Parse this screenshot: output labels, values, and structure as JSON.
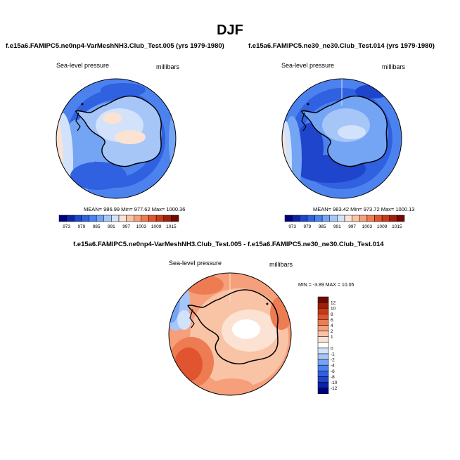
{
  "title": "DJF",
  "panels": [
    {
      "title": "f.e15a6.FAMIPC5.ne0np4-VarMeshNH3.Club_Test.005 (yrs 1979-1980)",
      "variable": "Sea-level pressure",
      "units": "millibars",
      "stats": "MEAN= 986.99   Min= 977.62   Max= 1000.36"
    },
    {
      "title": "f.e15a6.FAMIPC5.ne30_ne30.Club_Test.014 (yrs 1979-1980)",
      "variable": "Sea-level pressure",
      "units": "millibars",
      "stats": "MEAN= 983.42   Min= 973.72   Max= 1000.13"
    },
    {
      "title": "f.e15a6.FAMIPC5.ne0np4-VarMeshNH3.Club_Test.005 - f.e15a6.FAMIPC5.ne30_ne30.Club_Test.014",
      "variable": "Sea-level pressure",
      "units": "millibars",
      "stats": "MIN = -3.89  MAX =  10.05"
    }
  ],
  "colors": {
    "pressure_scale": [
      "#00007f",
      "#0b23a8",
      "#1f45cc",
      "#2f61e0",
      "#4c82ee",
      "#74a4f4",
      "#a6c6f8",
      "#d3e2fb",
      "#fbe2d2",
      "#f9c3a6",
      "#f5a07b",
      "#ee7c53",
      "#e0552f",
      "#c63a17",
      "#a01f0a",
      "#700a00"
    ],
    "diff_scale": [
      "#00007f",
      "#0b23a8",
      "#1f45cc",
      "#2f61e0",
      "#4c82ee",
      "#74a4f4",
      "#a6c6f8",
      "#d3e2fb",
      "#ffffff",
      "#fbe2d2",
      "#f9c3a6",
      "#f5a07b",
      "#ee7c53",
      "#e0552f",
      "#c63a17",
      "#a01f0a",
      "#700a00"
    ]
  },
  "chart_data": [
    {
      "type": "heatmap",
      "projection": "south-polar-stereographic",
      "title": "f.e15a6.FAMIPC5.ne0np4-VarMeshNH3.Club_Test.005 (yrs 1979-1980)",
      "variable": "Sea-level pressure",
      "units": "millibars",
      "mean": 986.99,
      "min": 977.62,
      "max": 1000.36,
      "colorbar_levels": [
        973,
        976,
        979,
        982,
        985,
        988,
        991,
        994,
        997,
        1000,
        1003,
        1006,
        1009,
        1012,
        1015
      ],
      "colorbar_labels": [
        "973",
        "979",
        "985",
        "991",
        "997",
        "1003",
        "1009",
        "1015"
      ]
    },
    {
      "type": "heatmap",
      "projection": "south-polar-stereographic",
      "title": "f.e15a6.FAMIPC5.ne30_ne30.Club_Test.014 (yrs 1979-1980)",
      "variable": "Sea-level pressure",
      "units": "millibars",
      "mean": 983.42,
      "min": 973.72,
      "max": 1000.13,
      "colorbar_levels": [
        973,
        976,
        979,
        982,
        985,
        988,
        991,
        994,
        997,
        1000,
        1003,
        1006,
        1009,
        1012,
        1015
      ],
      "colorbar_labels": [
        "973",
        "979",
        "985",
        "991",
        "997",
        "1003",
        "1009",
        "1015"
      ]
    },
    {
      "type": "heatmap",
      "projection": "south-polar-stereographic",
      "title": "f.e15a6.FAMIPC5.ne0np4-VarMeshNH3.Club_Test.005 - f.e15a6.FAMIPC5.ne30_ne30.Club_Test.014",
      "variable": "Sea-level pressure",
      "units": "millibars",
      "min": -3.89,
      "max": 10.05,
      "colorbar_levels": [
        -12,
        -10,
        -8,
        -6,
        -4,
        -2,
        -1,
        0,
        1,
        2,
        4,
        6,
        8,
        10,
        12
      ],
      "colorbar_labels": [
        "12",
        "10",
        "8",
        "6",
        "4",
        "2",
        "1",
        "0",
        "-1",
        "-2",
        "-4",
        "-6",
        "-8",
        "-10",
        "-12"
      ]
    }
  ]
}
